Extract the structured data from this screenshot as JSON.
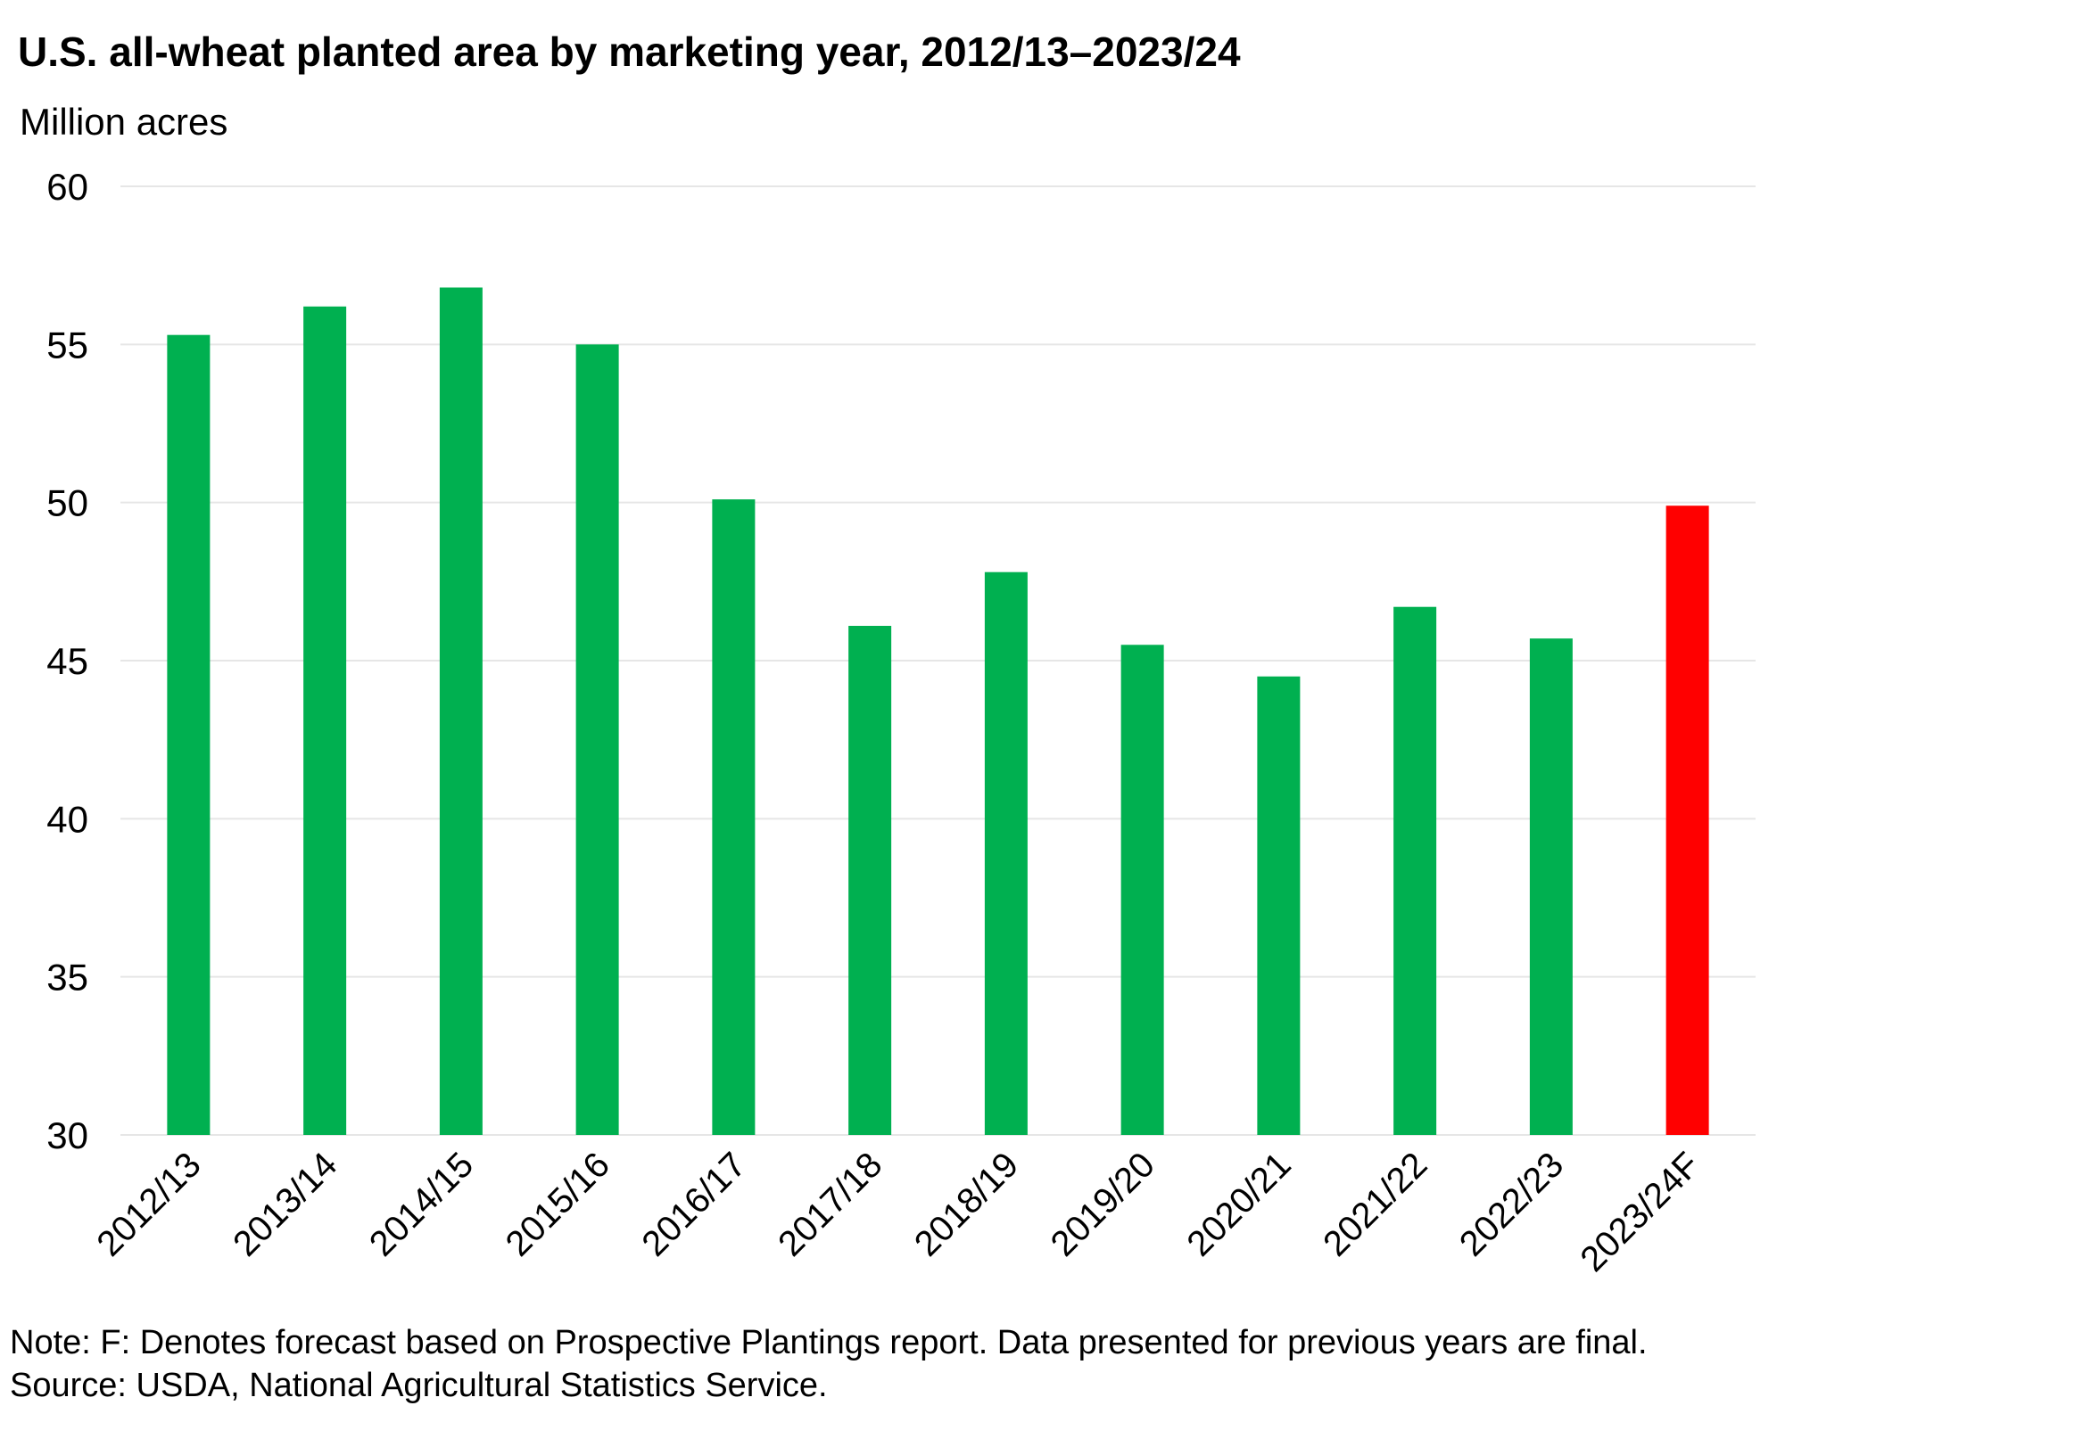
{
  "chart_data": {
    "type": "bar",
    "title": "U.S. all-wheat planted area by marketing year, 2012/13–2023/24",
    "ylabel": "Million acres",
    "xlabel": "",
    "ylim": [
      30,
      60
    ],
    "yticks": [
      30,
      35,
      40,
      45,
      50,
      55,
      60
    ],
    "grid": true,
    "legend": "none",
    "categories": [
      "2012/13",
      "2013/14",
      "2014/15",
      "2015/16",
      "2016/17",
      "2017/18",
      "2018/19",
      "2019/20",
      "2020/21",
      "2021/22",
      "2022/23",
      "2023/24F"
    ],
    "values": [
      55.3,
      56.2,
      56.8,
      55.0,
      50.1,
      46.1,
      47.8,
      45.5,
      44.5,
      46.7,
      45.7,
      49.9
    ],
    "colors": {
      "final": "#00b050",
      "forecast": "#ff0000",
      "grid": "#e6e6e6"
    },
    "forecast_index": 11
  },
  "notes": {
    "note": "Note: F: Denotes forecast based on Prospective Plantings report. Data presented for previous years are final.",
    "source": "Source: USDA, National Agricultural Statistics Service."
  }
}
